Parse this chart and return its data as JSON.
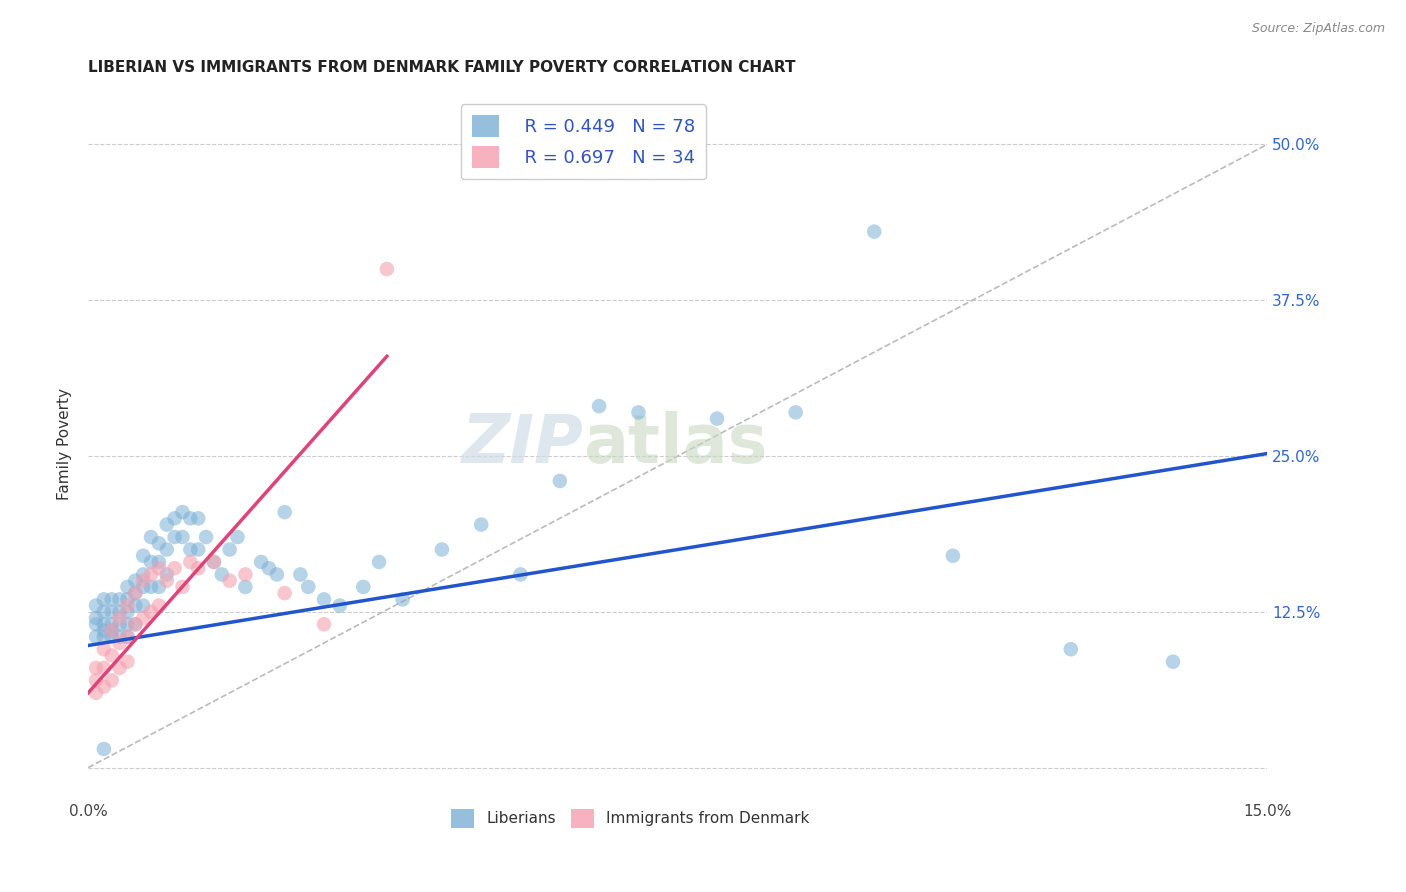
{
  "title": "LIBERIAN VS IMMIGRANTS FROM DENMARK FAMILY POVERTY CORRELATION CHART",
  "source": "Source: ZipAtlas.com",
  "ylabel": "Family Poverty",
  "ytick_labels": [
    "",
    "12.5%",
    "25.0%",
    "37.5%",
    "50.0%"
  ],
  "ytick_values": [
    0,
    0.125,
    0.25,
    0.375,
    0.5
  ],
  "xmin": 0.0,
  "xmax": 0.15,
  "ymin": -0.025,
  "ymax": 0.545,
  "legend_blue_R": "R = 0.449",
  "legend_blue_N": "N = 78",
  "legend_pink_R": "R = 0.697",
  "legend_pink_N": "N = 34",
  "legend_label_blue": "Liberians",
  "legend_label_pink": "Immigrants from Denmark",
  "watermark_zip": "ZIP",
  "watermark_atlas": "atlas",
  "dot_color_blue": "#7BAFD4",
  "dot_color_pink": "#F4A0B0",
  "line_color_blue": "#2255CC",
  "line_color_pink": "#DD4477",
  "diagonal_color": "#BBBBBB",
  "background_color": "#FFFFFF",
  "blue_dots_x": [
    0.001,
    0.001,
    0.001,
    0.001,
    0.002,
    0.002,
    0.002,
    0.002,
    0.002,
    0.003,
    0.003,
    0.003,
    0.003,
    0.003,
    0.004,
    0.004,
    0.004,
    0.004,
    0.005,
    0.005,
    0.005,
    0.005,
    0.005,
    0.006,
    0.006,
    0.006,
    0.006,
    0.007,
    0.007,
    0.007,
    0.007,
    0.008,
    0.008,
    0.008,
    0.009,
    0.009,
    0.009,
    0.01,
    0.01,
    0.01,
    0.011,
    0.011,
    0.012,
    0.012,
    0.013,
    0.013,
    0.014,
    0.014,
    0.015,
    0.016,
    0.017,
    0.018,
    0.019,
    0.02,
    0.022,
    0.023,
    0.024,
    0.025,
    0.027,
    0.028,
    0.03,
    0.032,
    0.035,
    0.037,
    0.04,
    0.045,
    0.05,
    0.055,
    0.06,
    0.065,
    0.07,
    0.08,
    0.09,
    0.1,
    0.11,
    0.125,
    0.138,
    0.002
  ],
  "blue_dots_y": [
    0.13,
    0.12,
    0.115,
    0.105,
    0.135,
    0.125,
    0.115,
    0.11,
    0.105,
    0.135,
    0.125,
    0.115,
    0.11,
    0.105,
    0.135,
    0.125,
    0.115,
    0.105,
    0.145,
    0.135,
    0.125,
    0.115,
    0.105,
    0.15,
    0.14,
    0.13,
    0.115,
    0.17,
    0.155,
    0.145,
    0.13,
    0.185,
    0.165,
    0.145,
    0.18,
    0.165,
    0.145,
    0.195,
    0.175,
    0.155,
    0.2,
    0.185,
    0.205,
    0.185,
    0.2,
    0.175,
    0.2,
    0.175,
    0.185,
    0.165,
    0.155,
    0.175,
    0.185,
    0.145,
    0.165,
    0.16,
    0.155,
    0.205,
    0.155,
    0.145,
    0.135,
    0.13,
    0.145,
    0.165,
    0.135,
    0.175,
    0.195,
    0.155,
    0.23,
    0.29,
    0.285,
    0.28,
    0.285,
    0.43,
    0.17,
    0.095,
    0.085,
    0.015
  ],
  "pink_dots_x": [
    0.001,
    0.001,
    0.001,
    0.002,
    0.002,
    0.002,
    0.003,
    0.003,
    0.003,
    0.004,
    0.004,
    0.004,
    0.005,
    0.005,
    0.005,
    0.006,
    0.006,
    0.007,
    0.007,
    0.008,
    0.008,
    0.009,
    0.009,
    0.01,
    0.011,
    0.012,
    0.013,
    0.014,
    0.016,
    0.018,
    0.02,
    0.025,
    0.03,
    0.038
  ],
  "pink_dots_y": [
    0.08,
    0.07,
    0.06,
    0.095,
    0.08,
    0.065,
    0.11,
    0.09,
    0.07,
    0.12,
    0.1,
    0.08,
    0.13,
    0.105,
    0.085,
    0.14,
    0.115,
    0.15,
    0.12,
    0.155,
    0.125,
    0.16,
    0.13,
    0.15,
    0.16,
    0.145,
    0.165,
    0.16,
    0.165,
    0.15,
    0.155,
    0.14,
    0.115,
    0.4
  ],
  "blue_line_x0": 0.0,
  "blue_line_y0": 0.098,
  "blue_line_x1": 0.15,
  "blue_line_y1": 0.252,
  "pink_line_x0": 0.0,
  "pink_line_y0": 0.06,
  "pink_line_x1": 0.038,
  "pink_line_y1": 0.33
}
